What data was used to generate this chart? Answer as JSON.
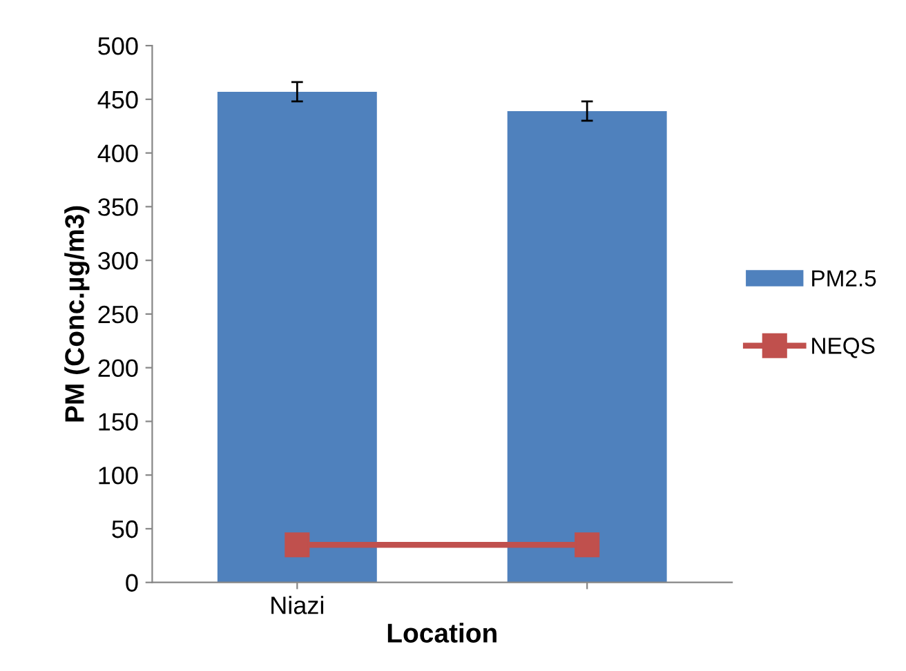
{
  "chart_data": {
    "type": "bar",
    "xlabel": "Location",
    "ylabel": "PM (Conc.µg/m3)",
    "categories": [
      "Niazi",
      null
    ],
    "series": [
      {
        "name": "PM2.5",
        "color": "#4f81bd",
        "values": [
          457,
          439
        ],
        "errors": [
          9,
          9
        ]
      },
      {
        "name": "NEQS",
        "type": "line",
        "color": "#c0504d",
        "values": [
          35,
          35
        ],
        "marker": "square"
      }
    ],
    "ylim": [
      0,
      500
    ],
    "yticks": [
      0,
      50,
      100,
      150,
      200,
      250,
      300,
      350,
      400,
      450,
      500
    ],
    "grid": false,
    "legend": "right"
  }
}
